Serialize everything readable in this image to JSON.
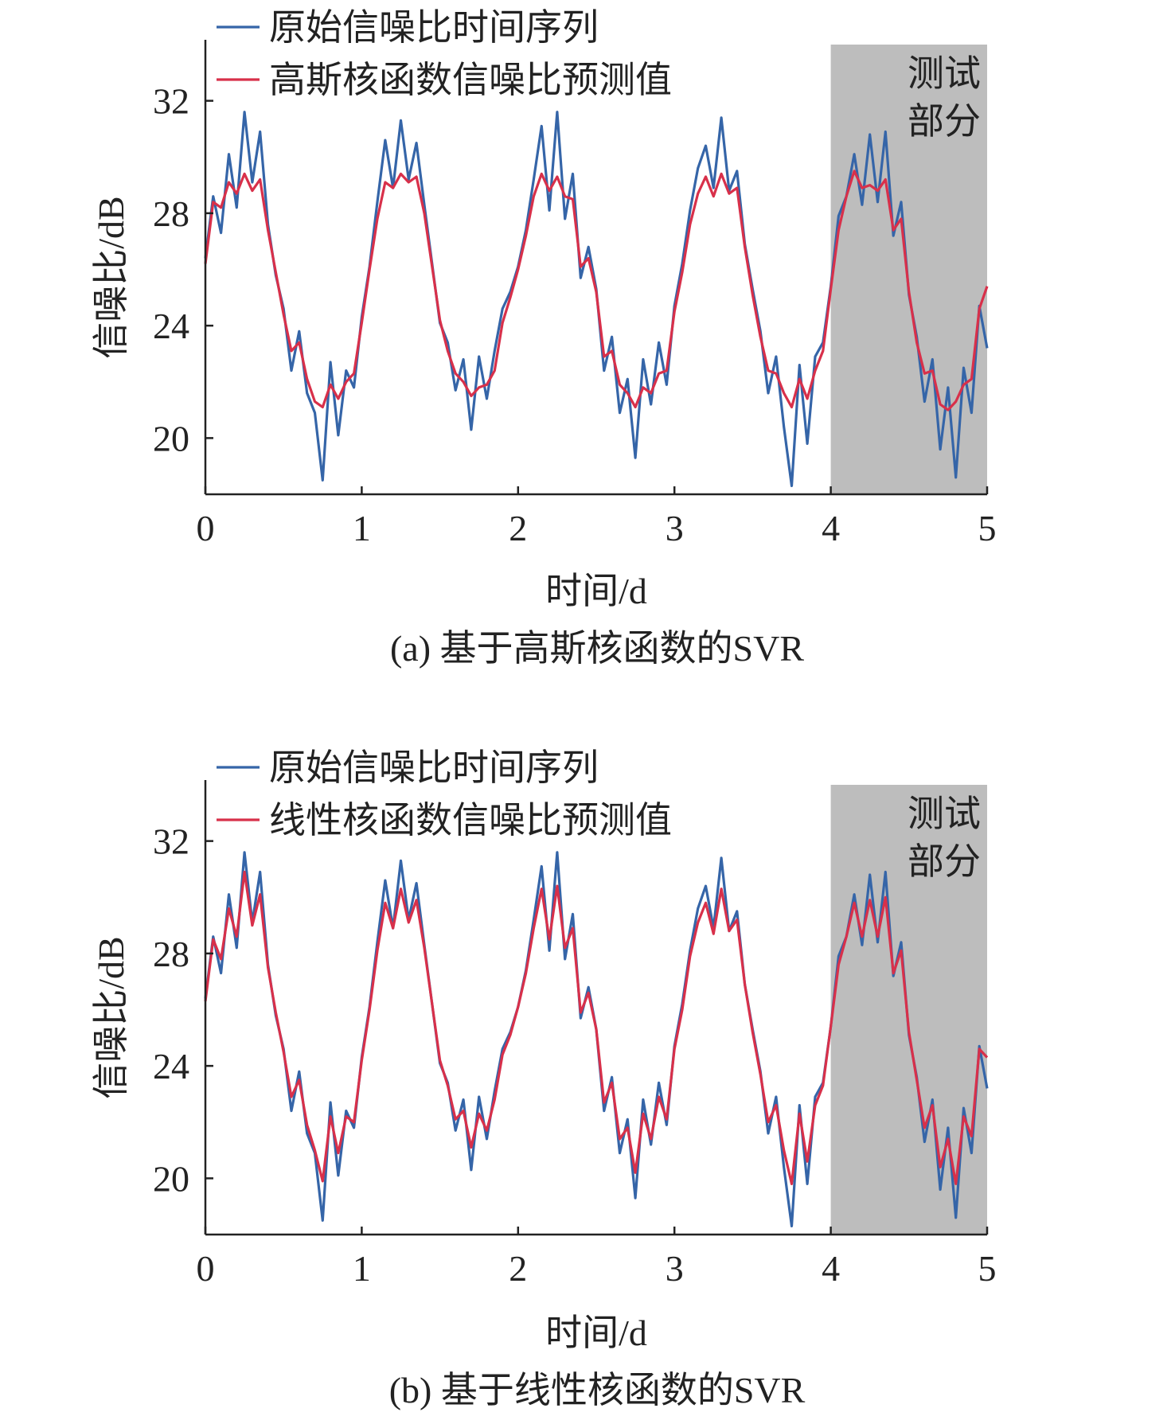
{
  "figure": {
    "panels": [
      {
        "caption": "(a) 基于高斯核函数的SVR",
        "legend": [
          "原始信噪比时间序列",
          "高斯核函数信噪比预测值"
        ],
        "test_region_label": [
          "测试",
          "部分"
        ],
        "xlabel": "时间/d",
        "ylabel": "信噪比/dB"
      },
      {
        "caption": "(b) 基于线性核函数的SVR",
        "legend": [
          "原始信噪比时间序列",
          "线性核函数信噪比预测值"
        ],
        "test_region_label": [
          "测试",
          "部分"
        ],
        "xlabel": "时间/d",
        "ylabel": "信噪比/dB"
      }
    ]
  },
  "colors": {
    "original": "#3565a8",
    "predicted": "#d8304a",
    "test_region": "#bdbdbd",
    "axis": "#222222"
  },
  "chart_data": [
    {
      "type": "line",
      "title": "",
      "xlabel": "时间/d",
      "ylabel": "信噪比/dB",
      "xlim": [
        0,
        5
      ],
      "ylim": [
        18,
        34
      ],
      "xticks": [
        0,
        1,
        2,
        3,
        4,
        5
      ],
      "yticks": [
        20,
        24,
        28,
        32
      ],
      "test_region": [
        4,
        5
      ],
      "legend_position": "top-left",
      "series": [
        {
          "name": "原始信噪比时间序列",
          "x": [
            0,
            0.05,
            0.1,
            0.15,
            0.2,
            0.25,
            0.3,
            0.35,
            0.4,
            0.45,
            0.5,
            0.55,
            0.6,
            0.65,
            0.7,
            0.75,
            0.8,
            0.85,
            0.9,
            0.95,
            1,
            1.05,
            1.1,
            1.15,
            1.2,
            1.25,
            1.3,
            1.35,
            1.4,
            1.45,
            1.5,
            1.55,
            1.6,
            1.65,
            1.7,
            1.75,
            1.8,
            1.85,
            1.9,
            1.95,
            2,
            2.05,
            2.1,
            2.15,
            2.2,
            2.25,
            2.3,
            2.35,
            2.4,
            2.45,
            2.5,
            2.55,
            2.6,
            2.65,
            2.7,
            2.75,
            2.8,
            2.85,
            2.9,
            2.95,
            3,
            3.05,
            3.1,
            3.15,
            3.2,
            3.25,
            3.3,
            3.35,
            3.4,
            3.45,
            3.5,
            3.55,
            3.6,
            3.65,
            3.7,
            3.75,
            3.8,
            3.85,
            3.9,
            3.95,
            4,
            4.05,
            4.1,
            4.15,
            4.2,
            4.25,
            4.3,
            4.35,
            4.4,
            4.45,
            4.5,
            4.55,
            4.6,
            4.65,
            4.7,
            4.75,
            4.8,
            4.85,
            4.9,
            4.95,
            5
          ],
          "values": [
            26.4,
            28.6,
            27.3,
            30.1,
            28.2,
            31.6,
            29.1,
            30.9,
            27.6,
            25.8,
            24.6,
            22.4,
            23.8,
            21.6,
            20.9,
            18.5,
            22.7,
            20.1,
            22.4,
            21.8,
            24.3,
            26.1,
            28.4,
            30.6,
            28.9,
            31.3,
            29.2,
            30.5,
            28.3,
            26.2,
            24.1,
            23.4,
            21.7,
            22.8,
            20.3,
            22.9,
            21.4,
            23.1,
            24.6,
            25.2,
            26.1,
            27.4,
            29.2,
            31.1,
            28.1,
            31.6,
            27.8,
            29.4,
            25.7,
            26.8,
            25.3,
            22.4,
            23.6,
            20.9,
            22.1,
            19.3,
            22.8,
            21.2,
            23.4,
            21.9,
            24.7,
            26.2,
            28.1,
            29.6,
            30.4,
            28.9,
            31.4,
            28.8,
            29.5,
            26.9,
            25.3,
            23.8,
            21.6,
            22.9,
            20.4,
            18.3,
            22.6,
            19.8,
            22.9,
            23.4,
            25.4,
            27.9,
            28.6,
            30.1,
            28.3,
            30.8,
            28.4,
            30.9,
            27.2,
            28.4,
            25.1,
            23.6,
            21.3,
            22.8,
            19.6,
            21.8,
            18.6,
            22.5,
            20.9,
            24.7,
            23.2
          ]
        },
        {
          "name": "高斯核函数信噪比预测值",
          "x": [
            0,
            0.05,
            0.1,
            0.15,
            0.2,
            0.25,
            0.3,
            0.35,
            0.4,
            0.45,
            0.5,
            0.55,
            0.6,
            0.65,
            0.7,
            0.75,
            0.8,
            0.85,
            0.9,
            0.95,
            1,
            1.05,
            1.1,
            1.15,
            1.2,
            1.25,
            1.3,
            1.35,
            1.4,
            1.45,
            1.5,
            1.55,
            1.6,
            1.65,
            1.7,
            1.75,
            1.8,
            1.85,
            1.9,
            1.95,
            2,
            2.05,
            2.1,
            2.15,
            2.2,
            2.25,
            2.3,
            2.35,
            2.4,
            2.45,
            2.5,
            2.55,
            2.6,
            2.65,
            2.7,
            2.75,
            2.8,
            2.85,
            2.9,
            2.95,
            3,
            3.05,
            3.1,
            3.15,
            3.2,
            3.25,
            3.3,
            3.35,
            3.4,
            3.45,
            3.5,
            3.55,
            3.6,
            3.65,
            3.7,
            3.75,
            3.8,
            3.85,
            3.9,
            3.95,
            4,
            4.05,
            4.1,
            4.15,
            4.2,
            4.25,
            4.3,
            4.35,
            4.4,
            4.45,
            4.5,
            4.55,
            4.6,
            4.65,
            4.7,
            4.75,
            4.8,
            4.85,
            4.9,
            4.95,
            5
          ],
          "values": [
            26.2,
            28.4,
            28.2,
            29.1,
            28.7,
            29.4,
            28.8,
            29.2,
            27.4,
            25.9,
            24.4,
            23.1,
            23.4,
            22.1,
            21.3,
            21.1,
            21.9,
            21.4,
            22.0,
            22.3,
            24.1,
            26.0,
            27.8,
            29.1,
            28.9,
            29.4,
            29.1,
            29.3,
            28.0,
            26.1,
            24.2,
            23.1,
            22.3,
            22.0,
            21.5,
            21.8,
            21.9,
            22.4,
            24.1,
            25.0,
            26.0,
            27.2,
            28.6,
            29.4,
            28.8,
            29.3,
            28.6,
            28.5,
            26.1,
            26.4,
            25.2,
            22.9,
            23.1,
            21.9,
            21.6,
            21.1,
            21.8,
            21.6,
            22.3,
            22.4,
            24.5,
            25.9,
            27.6,
            28.7,
            29.3,
            28.6,
            29.4,
            28.7,
            28.9,
            26.8,
            25.1,
            23.6,
            22.4,
            22.3,
            21.6,
            21.1,
            22.1,
            21.4,
            22.4,
            23.1,
            25.3,
            27.4,
            28.6,
            29.5,
            28.9,
            29.0,
            28.8,
            29.2,
            27.4,
            27.8,
            25.2,
            23.4,
            22.3,
            22.4,
            21.2,
            21.0,
            21.3,
            21.9,
            22.1,
            24.6,
            25.4
          ]
        }
      ]
    },
    {
      "type": "line",
      "title": "",
      "xlabel": "时间/d",
      "ylabel": "信噪比/dB",
      "xlim": [
        0,
        5
      ],
      "ylim": [
        18,
        34
      ],
      "xticks": [
        0,
        1,
        2,
        3,
        4,
        5
      ],
      "yticks": [
        20,
        24,
        28,
        32
      ],
      "test_region": [
        4,
        5
      ],
      "legend_position": "top-left",
      "series": [
        {
          "name": "原始信噪比时间序列",
          "x": [
            0,
            0.05,
            0.1,
            0.15,
            0.2,
            0.25,
            0.3,
            0.35,
            0.4,
            0.45,
            0.5,
            0.55,
            0.6,
            0.65,
            0.7,
            0.75,
            0.8,
            0.85,
            0.9,
            0.95,
            1,
            1.05,
            1.1,
            1.15,
            1.2,
            1.25,
            1.3,
            1.35,
            1.4,
            1.45,
            1.5,
            1.55,
            1.6,
            1.65,
            1.7,
            1.75,
            1.8,
            1.85,
            1.9,
            1.95,
            2,
            2.05,
            2.1,
            2.15,
            2.2,
            2.25,
            2.3,
            2.35,
            2.4,
            2.45,
            2.5,
            2.55,
            2.6,
            2.65,
            2.7,
            2.75,
            2.8,
            2.85,
            2.9,
            2.95,
            3,
            3.05,
            3.1,
            3.15,
            3.2,
            3.25,
            3.3,
            3.35,
            3.4,
            3.45,
            3.5,
            3.55,
            3.6,
            3.65,
            3.7,
            3.75,
            3.8,
            3.85,
            3.9,
            3.95,
            4,
            4.05,
            4.1,
            4.15,
            4.2,
            4.25,
            4.3,
            4.35,
            4.4,
            4.45,
            4.5,
            4.55,
            4.6,
            4.65,
            4.7,
            4.75,
            4.8,
            4.85,
            4.9,
            4.95,
            5
          ],
          "values": [
            26.4,
            28.6,
            27.3,
            30.1,
            28.2,
            31.6,
            29.1,
            30.9,
            27.6,
            25.8,
            24.6,
            22.4,
            23.8,
            21.6,
            20.9,
            18.5,
            22.7,
            20.1,
            22.4,
            21.8,
            24.3,
            26.1,
            28.4,
            30.6,
            28.9,
            31.3,
            29.2,
            30.5,
            28.3,
            26.2,
            24.1,
            23.4,
            21.7,
            22.8,
            20.3,
            22.9,
            21.4,
            23.1,
            24.6,
            25.2,
            26.1,
            27.4,
            29.2,
            31.1,
            28.1,
            31.6,
            27.8,
            29.4,
            25.7,
            26.8,
            25.3,
            22.4,
            23.6,
            20.9,
            22.1,
            19.3,
            22.8,
            21.2,
            23.4,
            21.9,
            24.7,
            26.2,
            28.1,
            29.6,
            30.4,
            28.9,
            31.4,
            28.8,
            29.5,
            26.9,
            25.3,
            23.8,
            21.6,
            22.9,
            20.4,
            18.3,
            22.6,
            19.8,
            22.9,
            23.4,
            25.4,
            27.9,
            28.6,
            30.1,
            28.3,
            30.8,
            28.4,
            30.9,
            27.2,
            28.4,
            25.1,
            23.6,
            21.3,
            22.8,
            19.6,
            21.8,
            18.6,
            22.5,
            20.9,
            24.7,
            23.2
          ]
        },
        {
          "name": "线性核函数信噪比预测值",
          "x": [
            0,
            0.05,
            0.1,
            0.15,
            0.2,
            0.25,
            0.3,
            0.35,
            0.4,
            0.45,
            0.5,
            0.55,
            0.6,
            0.65,
            0.7,
            0.75,
            0.8,
            0.85,
            0.9,
            0.95,
            1,
            1.05,
            1.1,
            1.15,
            1.2,
            1.25,
            1.3,
            1.35,
            1.4,
            1.45,
            1.5,
            1.55,
            1.6,
            1.65,
            1.7,
            1.75,
            1.8,
            1.85,
            1.9,
            1.95,
            2,
            2.05,
            2.1,
            2.15,
            2.2,
            2.25,
            2.3,
            2.35,
            2.4,
            2.45,
            2.5,
            2.55,
            2.6,
            2.65,
            2.7,
            2.75,
            2.8,
            2.85,
            2.9,
            2.95,
            3,
            3.05,
            3.1,
            3.15,
            3.2,
            3.25,
            3.3,
            3.35,
            3.4,
            3.45,
            3.5,
            3.55,
            3.6,
            3.65,
            3.7,
            3.75,
            3.8,
            3.85,
            3.9,
            3.95,
            4,
            4.05,
            4.1,
            4.15,
            4.2,
            4.25,
            4.3,
            4.35,
            4.4,
            4.45,
            4.5,
            4.55,
            4.6,
            4.65,
            4.7,
            4.75,
            4.8,
            4.85,
            4.9,
            4.95,
            5
          ],
          "values": [
            26.3,
            28.5,
            27.8,
            29.6,
            28.6,
            30.9,
            29.0,
            30.1,
            27.5,
            25.9,
            24.5,
            22.9,
            23.5,
            21.9,
            21.0,
            19.9,
            22.2,
            20.9,
            22.2,
            22.0,
            24.2,
            26.0,
            28.1,
            29.8,
            28.9,
            30.3,
            29.1,
            29.9,
            28.2,
            26.2,
            24.2,
            23.3,
            22.1,
            22.4,
            21.1,
            22.3,
            21.7,
            22.8,
            24.4,
            25.1,
            26.1,
            27.3,
            28.9,
            30.3,
            28.5,
            30.4,
            28.2,
            28.9,
            25.9,
            26.6,
            25.3,
            22.7,
            23.4,
            21.4,
            21.8,
            20.2,
            22.3,
            21.4,
            22.9,
            22.1,
            24.6,
            26.0,
            27.9,
            29.1,
            29.8,
            28.7,
            30.3,
            28.8,
            29.2,
            26.9,
            25.2,
            23.7,
            22.0,
            22.6,
            21.0,
            19.8,
            22.3,
            20.6,
            22.6,
            23.3,
            25.4,
            27.6,
            28.6,
            29.8,
            28.6,
            29.9,
            28.6,
            30.0,
            27.3,
            28.1,
            25.2,
            23.5,
            21.8,
            22.6,
            20.4,
            21.4,
            19.8,
            22.2,
            21.5,
            24.6,
            24.3
          ]
        }
      ]
    }
  ]
}
